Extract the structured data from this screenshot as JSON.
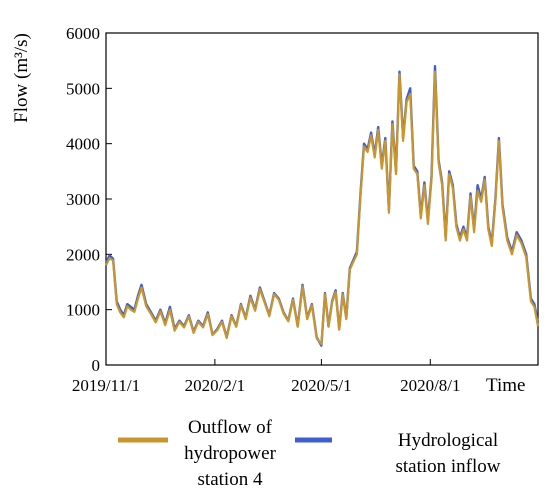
{
  "chart_data": {
    "type": "line",
    "title": "",
    "xlabel": "Time",
    "ylabel": "Flow (m³/s)",
    "ylim": [
      0,
      6000
    ],
    "yticks": [
      0,
      1000,
      2000,
      3000,
      4000,
      5000,
      6000
    ],
    "xticks": [
      {
        "label": "2019/11/1",
        "date": "2019-11-01"
      },
      {
        "label": "2020/2/1",
        "date": "2020-02-01"
      },
      {
        "label": "2020/5/1",
        "date": "2020-05-01"
      },
      {
        "label": "2020/8/1",
        "date": "2020-08-01"
      }
    ],
    "xlim": [
      "2019-11-01",
      "2020-10-31"
    ],
    "grid": false,
    "legend_position": "bottom",
    "x": [
      "2019-11-01",
      "2019-11-04",
      "2019-11-07",
      "2019-11-10",
      "2019-11-13",
      "2019-11-16",
      "2019-11-19",
      "2019-11-22",
      "2019-11-25",
      "2019-11-28",
      "2019-12-01",
      "2019-12-05",
      "2019-12-09",
      "2019-12-13",
      "2019-12-17",
      "2019-12-21",
      "2019-12-25",
      "2019-12-29",
      "2020-01-02",
      "2020-01-06",
      "2020-01-10",
      "2020-01-14",
      "2020-01-18",
      "2020-01-22",
      "2020-01-26",
      "2020-01-30",
      "2020-02-03",
      "2020-02-07",
      "2020-02-11",
      "2020-02-15",
      "2020-02-19",
      "2020-02-23",
      "2020-02-27",
      "2020-03-02",
      "2020-03-06",
      "2020-03-10",
      "2020-03-14",
      "2020-03-18",
      "2020-03-22",
      "2020-03-26",
      "2020-03-30",
      "2020-04-03",
      "2020-04-07",
      "2020-04-11",
      "2020-04-15",
      "2020-04-19",
      "2020-04-23",
      "2020-04-27",
      "2020-05-01",
      "2020-05-04",
      "2020-05-07",
      "2020-05-10",
      "2020-05-13",
      "2020-05-16",
      "2020-05-19",
      "2020-05-22",
      "2020-05-25",
      "2020-05-28",
      "2020-05-31",
      "2020-06-03",
      "2020-06-06",
      "2020-06-09",
      "2020-06-12",
      "2020-06-15",
      "2020-06-18",
      "2020-06-21",
      "2020-06-24",
      "2020-06-27",
      "2020-06-30",
      "2020-07-03",
      "2020-07-06",
      "2020-07-09",
      "2020-07-12",
      "2020-07-15",
      "2020-07-18",
      "2020-07-21",
      "2020-07-24",
      "2020-07-27",
      "2020-07-30",
      "2020-08-02",
      "2020-08-05",
      "2020-08-08",
      "2020-08-11",
      "2020-08-14",
      "2020-08-17",
      "2020-08-20",
      "2020-08-23",
      "2020-08-26",
      "2020-08-29",
      "2020-09-01",
      "2020-09-04",
      "2020-09-07",
      "2020-09-10",
      "2020-09-13",
      "2020-09-16",
      "2020-09-19",
      "2020-09-22",
      "2020-09-25",
      "2020-09-28",
      "2020-10-01",
      "2020-10-05",
      "2020-10-09",
      "2020-10-13",
      "2020-10-17",
      "2020-10-21",
      "2020-10-25",
      "2020-10-28",
      "2020-10-31"
    ],
    "series": [
      {
        "name": "Hydrological station inflow",
        "color": "#3f5fd0",
        "values": [
          1850,
          1980,
          1920,
          1150,
          1000,
          900,
          1100,
          1050,
          1000,
          1250,
          1450,
          1100,
          950,
          800,
          1000,
          750,
          1050,
          650,
          800,
          700,
          900,
          600,
          800,
          700,
          950,
          550,
          650,
          800,
          500,
          900,
          700,
          1100,
          850,
          1250,
          1000,
          1400,
          1150,
          900,
          1300,
          1200,
          950,
          800,
          1200,
          700,
          1450,
          850,
          1100,
          500,
          350,
          1300,
          700,
          1150,
          1350,
          650,
          1300,
          850,
          1750,
          1900,
          2050,
          3100,
          4000,
          3900,
          4200,
          3800,
          4300,
          3600,
          4100,
          2800,
          4400,
          3500,
          5300,
          4100,
          4800,
          5000,
          3600,
          3500,
          2700,
          3300,
          2600,
          3400,
          5400,
          3700,
          3300,
          2300,
          3500,
          3250,
          2550,
          2300,
          2500,
          2300,
          3100,
          2450,
          3250,
          3000,
          3400,
          2500,
          2200,
          3000,
          4100,
          2900,
          2300,
          2050,
          2400,
          2250,
          2000,
          1200,
          1100,
          750
        ]
      },
      {
        "name": "Outflow of hydropower station 4",
        "color": "#c9962e",
        "values": [
          1800,
          1930,
          1890,
          1100,
          950,
          860,
          1060,
          1000,
          960,
          1200,
          1400,
          1060,
          920,
          770,
          970,
          720,
          1000,
          620,
          780,
          680,
          880,
          580,
          780,
          680,
          920,
          540,
          630,
          780,
          490,
          880,
          690,
          1080,
          830,
          1220,
          980,
          1370,
          1130,
          880,
          1280,
          1180,
          930,
          790,
          1180,
          690,
          1420,
          830,
          1080,
          480,
          380,
          1280,
          690,
          1130,
          1320,
          640,
          1280,
          830,
          1720,
          1870,
          2000,
          3050,
          3950,
          3850,
          4150,
          3750,
          4250,
          3550,
          4050,
          2750,
          4350,
          3450,
          5250,
          4050,
          4750,
          4900,
          3550,
          3450,
          2650,
          3250,
          2550,
          3350,
          5300,
          3650,
          3250,
          2250,
          3450,
          3200,
          2500,
          2250,
          2450,
          2250,
          3050,
          2400,
          3150,
          2950,
          3350,
          2450,
          2150,
          2950,
          4050,
          2850,
          2250,
          2000,
          2350,
          2200,
          1950,
          1150,
          1050,
          700
        ]
      }
    ]
  },
  "legend": {
    "outflow_line1": "Outflow of",
    "outflow_line2": "hydropower",
    "outflow_line3": "station 4",
    "inflow_line1": "Hydrological",
    "inflow_line2": "station inflow"
  }
}
